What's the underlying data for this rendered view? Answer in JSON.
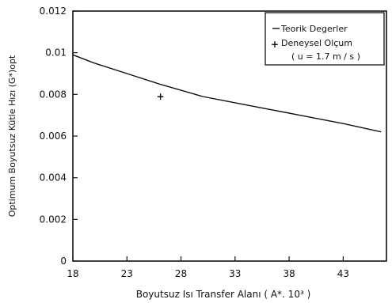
{
  "chart_data": {
    "type": "line",
    "xlabel": "Boyutsuz Isı Transfer Alanı ( A*. 10³ )",
    "ylabel": "Optimum Boyutsuz Kütle Hızı (G*)opt",
    "x_ticks": [
      "18",
      "23",
      "28",
      "33",
      "38",
      "43"
    ],
    "y_ticks": [
      "0",
      "0.002",
      "0.004",
      "0.006",
      "0.008",
      "0.01",
      "0.012"
    ],
    "xlim": [
      18,
      47
    ],
    "ylim": [
      0,
      0.012
    ],
    "grid": false,
    "legend_position": "top-right",
    "legend": {
      "line_label": "Teorik Degerler",
      "point_label": "Deneysel Olçum",
      "note": "( u = 1.7 m / s )"
    },
    "series": [
      {
        "name": "Teorik Degerler",
        "kind": "line",
        "x": [
          18,
          20,
          23,
          26,
          28,
          30,
          33,
          36,
          38,
          40,
          43,
          46.5
        ],
        "y": [
          0.0099,
          0.0095,
          0.009,
          0.0085,
          0.0082,
          0.0079,
          0.0076,
          0.0073,
          0.0071,
          0.0069,
          0.0066,
          0.0062
        ]
      },
      {
        "name": "Deneysel Olçum",
        "kind": "scatter",
        "x": [
          26.1
        ],
        "y": [
          0.0079
        ]
      }
    ]
  }
}
